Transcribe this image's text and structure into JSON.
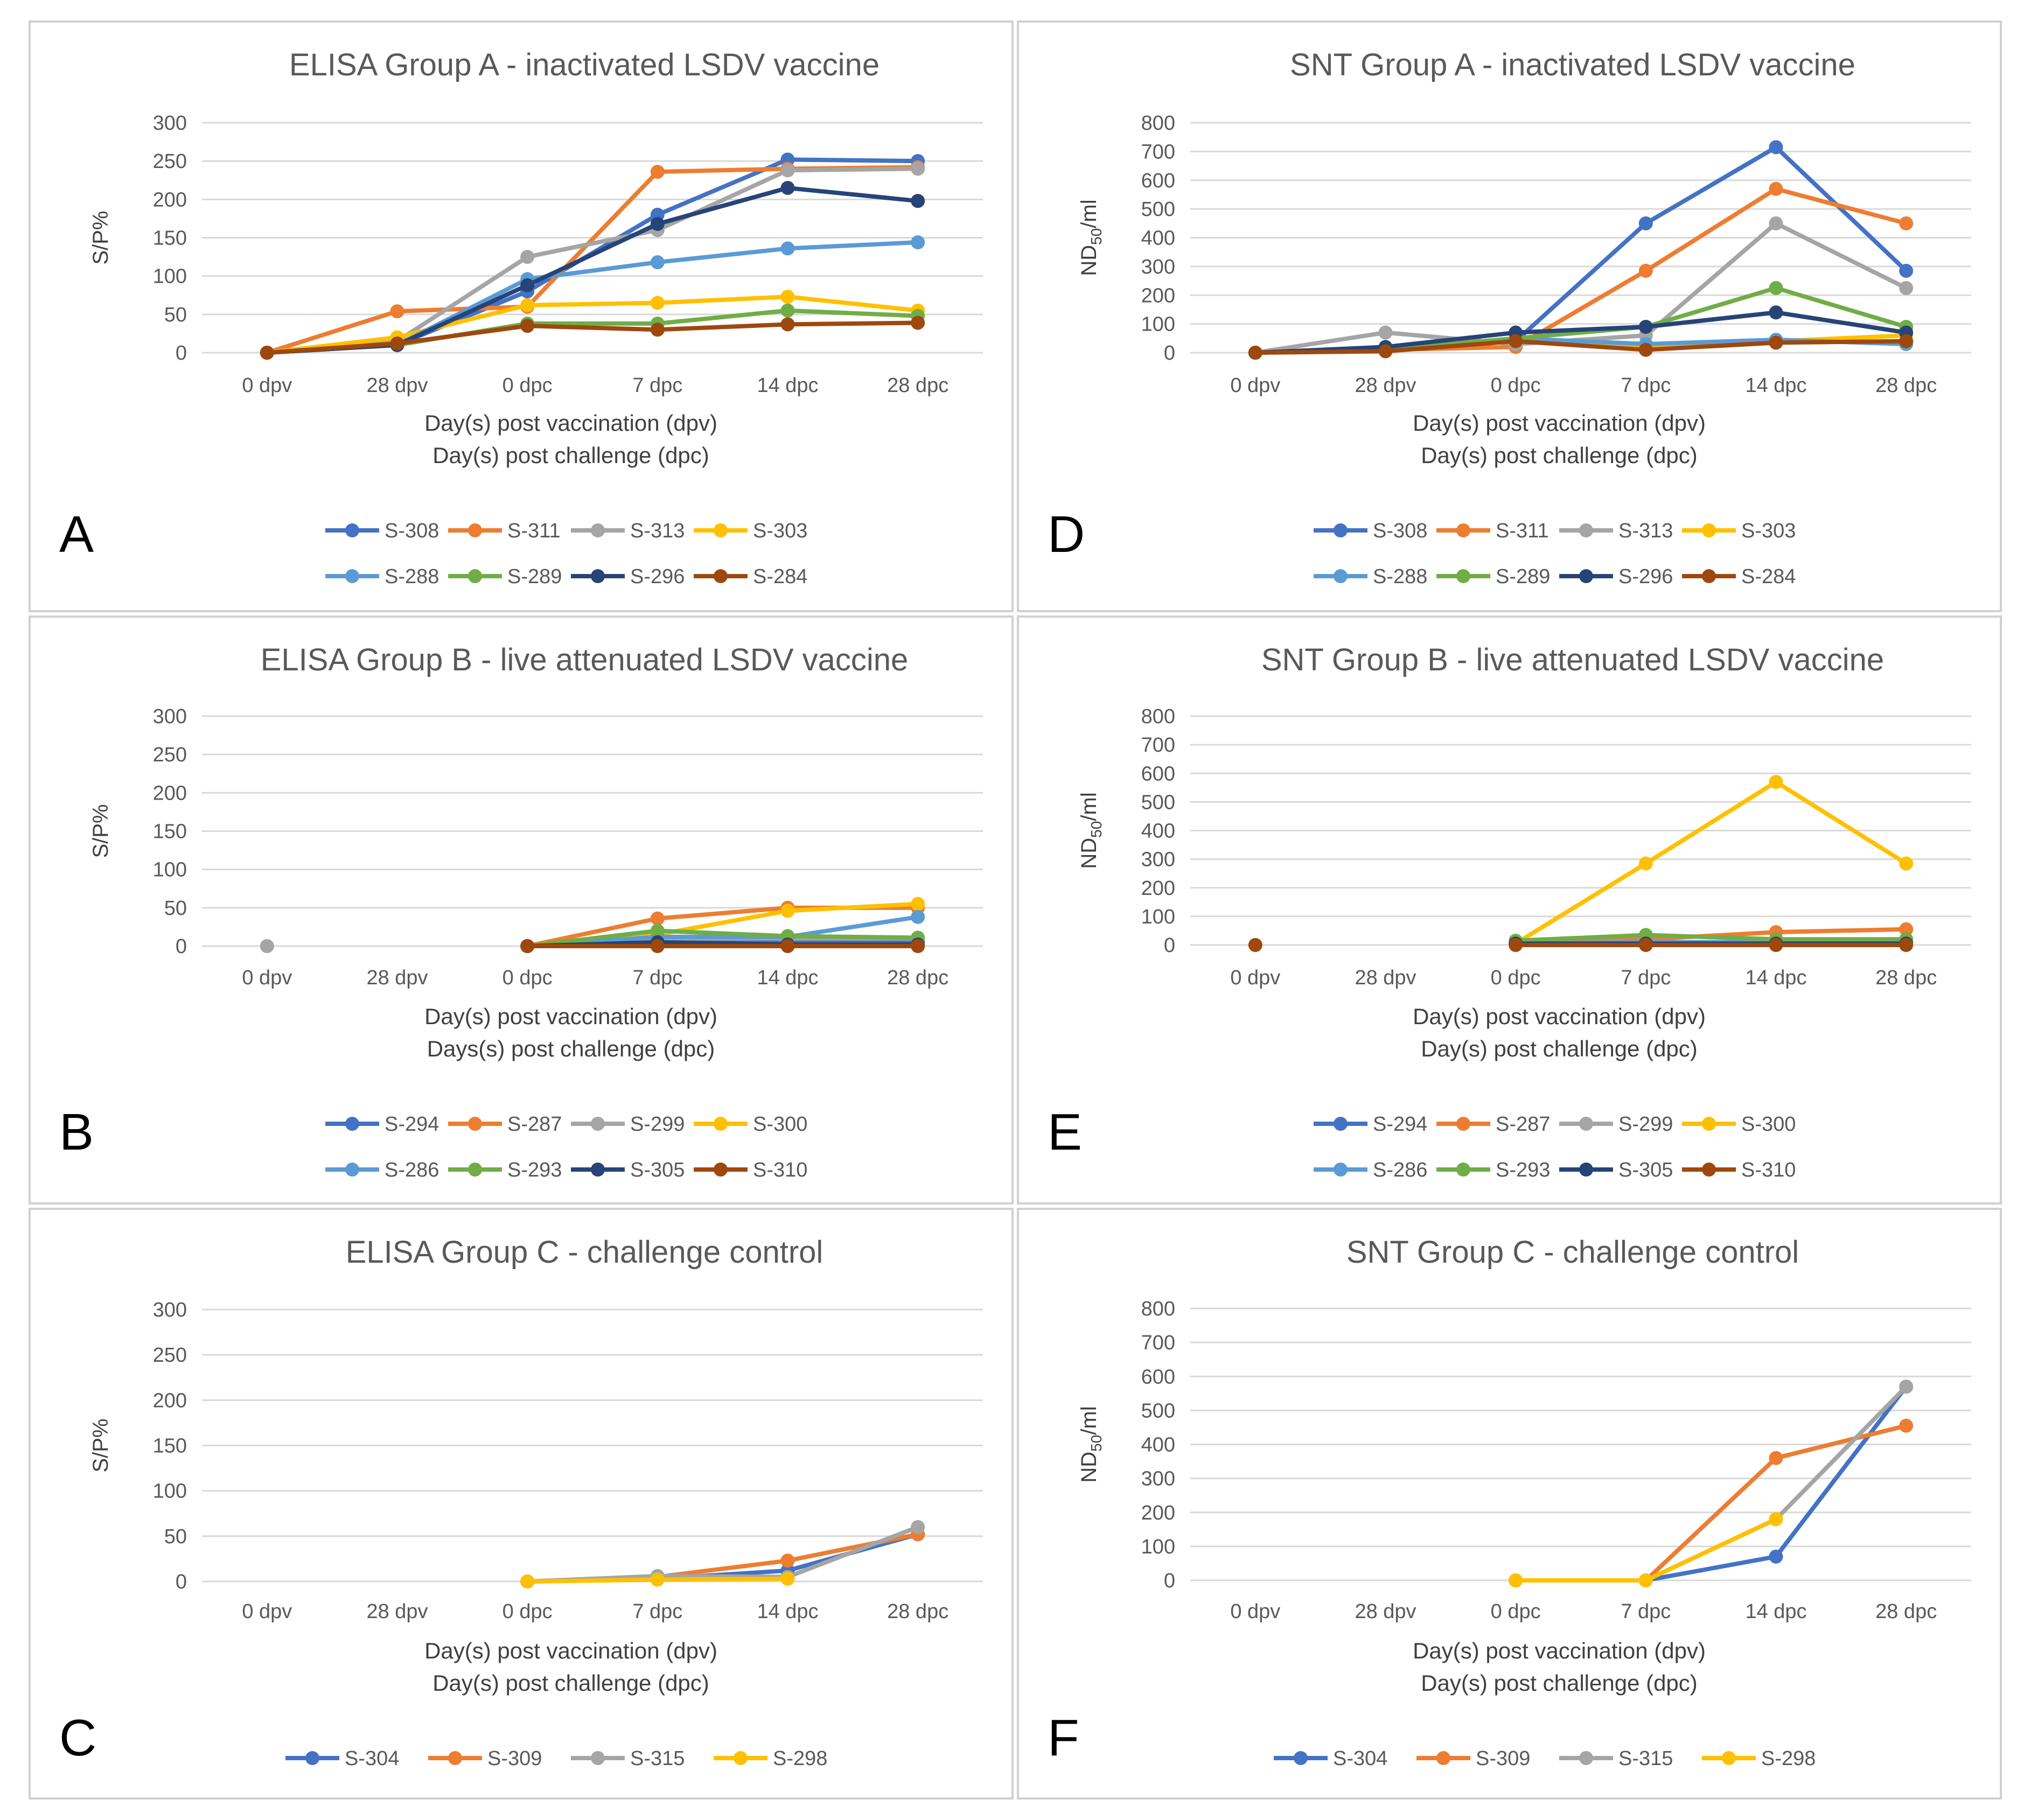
{
  "chart_data": [
    {
      "panel": "A",
      "type": "line",
      "title": "ELISA Group A - inactivated LSDV vaccine",
      "ylabel": "S/P%",
      "xlabel": [
        "Day(s) post vaccination (dpv)",
        "Day(s) post challenge (dpc)"
      ],
      "categories": [
        "0 dpv",
        "28 dpv",
        "0 dpc",
        "7 dpc",
        "14 dpc",
        "28 dpc"
      ],
      "ylim": [
        0,
        300
      ],
      "yticks": [
        "0",
        "50",
        "100",
        "150",
        "200",
        "250",
        "300"
      ],
      "series": [
        {
          "name": "S-308",
          "color": "#4472C4",
          "values": [
            0,
            10,
            80,
            180,
            252,
            250
          ]
        },
        {
          "name": "S-311",
          "color": "#ED7D31",
          "values": [
            0,
            54,
            60,
            236,
            240,
            242
          ]
        },
        {
          "name": "S-313",
          "color": "#A5A5A5",
          "values": [
            0,
            15,
            125,
            160,
            238,
            240
          ]
        },
        {
          "name": "S-303",
          "color": "#FFC000",
          "values": [
            0,
            20,
            62,
            65,
            73,
            55
          ]
        },
        {
          "name": "S-288",
          "color": "#5B9BD5",
          "values": [
            0,
            10,
            96,
            118,
            136,
            144
          ]
        },
        {
          "name": "S-289",
          "color": "#70AD47",
          "values": [
            0,
            10,
            38,
            38,
            55,
            48
          ]
        },
        {
          "name": "S-296",
          "color": "#264478",
          "values": [
            0,
            10,
            88,
            168,
            215,
            198
          ]
        },
        {
          "name": "S-284",
          "color": "#9E480E",
          "values": [
            0,
            12,
            35,
            30,
            37,
            39
          ]
        }
      ]
    },
    {
      "panel": "B",
      "type": "line",
      "title": "ELISA Group B - live attenuated LSDV vaccine",
      "ylabel": "S/P%",
      "xlabel": [
        "Day(s) post vaccination (dpv)",
        "Days(s) post challenge (dpc)"
      ],
      "categories": [
        "0 dpv",
        "28 dpv",
        "0 dpc",
        "7 dpc",
        "14 dpc",
        "28 dpc"
      ],
      "ylim": [
        0,
        300
      ],
      "yticks": [
        "0",
        "50",
        "100",
        "150",
        "200",
        "250",
        "300"
      ],
      "series": [
        {
          "name": "S-294",
          "color": "#4472C4",
          "values": [
            null,
            null,
            0,
            8,
            5,
            5
          ]
        },
        {
          "name": "S-287",
          "color": "#ED7D31",
          "values": [
            null,
            null,
            0,
            36,
            50,
            50
          ]
        },
        {
          "name": "S-299",
          "color": "#A5A5A5",
          "values": [
            0,
            null,
            0,
            10,
            10,
            10
          ]
        },
        {
          "name": "S-300",
          "color": "#FFC000",
          "values": [
            null,
            null,
            0,
            15,
            46,
            55
          ]
        },
        {
          "name": "S-286",
          "color": "#5B9BD5",
          "values": [
            null,
            null,
            0,
            12,
            12,
            38
          ]
        },
        {
          "name": "S-293",
          "color": "#70AD47",
          "values": [
            null,
            null,
            0,
            20,
            13,
            11
          ]
        },
        {
          "name": "S-305",
          "color": "#264478",
          "values": [
            null,
            null,
            0,
            5,
            2,
            2
          ]
        },
        {
          "name": "S-310",
          "color": "#9E480E",
          "values": [
            null,
            null,
            0,
            0,
            0,
            0
          ]
        }
      ]
    },
    {
      "panel": "C",
      "type": "line",
      "title": "ELISA Group C - challenge control",
      "ylabel": "S/P%",
      "xlabel": [
        "Day(s) post vaccination (dpv)",
        "Day(s) post challenge (dpc)"
      ],
      "categories": [
        "0 dpv",
        "28 dpv",
        "0 dpc",
        "7 dpc",
        "14 dpc",
        "28 dpc"
      ],
      "ylim": [
        0,
        300
      ],
      "yticks": [
        "0",
        "50",
        "100",
        "150",
        "200",
        "250",
        "300"
      ],
      "series": [
        {
          "name": "S-304",
          "color": "#4472C4",
          "values": [
            null,
            null,
            0,
            3,
            12,
            52
          ]
        },
        {
          "name": "S-309",
          "color": "#ED7D31",
          "values": [
            null,
            null,
            0,
            5,
            23,
            52
          ]
        },
        {
          "name": "S-315",
          "color": "#A5A5A5",
          "values": [
            null,
            null,
            0,
            6,
            5,
            60
          ]
        },
        {
          "name": "S-298",
          "color": "#FFC000",
          "values": [
            null,
            null,
            0,
            2,
            3,
            null
          ]
        }
      ]
    },
    {
      "panel": "D",
      "type": "line",
      "title": "SNT Group A - inactivated LSDV vaccine",
      "ylabel": "ND50/ml",
      "xlabel": [
        "Day(s) post vaccination (dpv)",
        "Day(s) post challenge (dpc)"
      ],
      "categories": [
        "0 dpv",
        "28 dpv",
        "0 dpc",
        "7 dpc",
        "14 dpc",
        "28 dpc"
      ],
      "ylim": [
        0,
        800
      ],
      "yticks": [
        "0",
        "100",
        "200",
        "300",
        "400",
        "500",
        "600",
        "700",
        "800"
      ],
      "series": [
        {
          "name": "S-308",
          "color": "#4472C4",
          "values": [
            0,
            10,
            40,
            450,
            715,
            285
          ]
        },
        {
          "name": "S-311",
          "color": "#ED7D31",
          "values": [
            0,
            10,
            20,
            285,
            570,
            450
          ]
        },
        {
          "name": "S-313",
          "color": "#A5A5A5",
          "values": [
            0,
            70,
            30,
            60,
            450,
            225
          ]
        },
        {
          "name": "S-303",
          "color": "#FFC000",
          "values": [
            0,
            10,
            40,
            20,
            40,
            60
          ]
        },
        {
          "name": "S-288",
          "color": "#5B9BD5",
          "values": [
            0,
            10,
            50,
            30,
            45,
            30
          ]
        },
        {
          "name": "S-289",
          "color": "#70AD47",
          "values": [
            0,
            10,
            50,
            90,
            225,
            90
          ]
        },
        {
          "name": "S-296",
          "color": "#264478",
          "values": [
            0,
            20,
            70,
            90,
            140,
            70
          ]
        },
        {
          "name": "S-284",
          "color": "#9E480E",
          "values": [
            0,
            5,
            40,
            10,
            35,
            40
          ]
        }
      ]
    },
    {
      "panel": "E",
      "type": "line",
      "title": "SNT Group B - live attenuated LSDV vaccine",
      "ylabel": "ND50/ml",
      "xlabel": [
        "Day(s) post vaccination (dpv)",
        "Day(s) post challenge (dpc)"
      ],
      "categories": [
        "0 dpv",
        "28 dpv",
        "0 dpc",
        "7 dpc",
        "14 dpc",
        "28 dpc"
      ],
      "ylim": [
        0,
        800
      ],
      "yticks": [
        "0",
        "100",
        "200",
        "300",
        "400",
        "500",
        "600",
        "700",
        "800"
      ],
      "series": [
        {
          "name": "S-294",
          "color": "#4472C4",
          "values": [
            null,
            null,
            5,
            10,
            10,
            10
          ]
        },
        {
          "name": "S-287",
          "color": "#ED7D31",
          "values": [
            null,
            null,
            5,
            20,
            45,
            55
          ]
        },
        {
          "name": "S-299",
          "color": "#A5A5A5",
          "values": [
            null,
            null,
            5,
            10,
            10,
            10
          ]
        },
        {
          "name": "S-300",
          "color": "#FFC000",
          "values": [
            null,
            null,
            5,
            285,
            570,
            285
          ]
        },
        {
          "name": "S-286",
          "color": "#5B9BD5",
          "values": [
            null,
            null,
            5,
            10,
            10,
            10
          ]
        },
        {
          "name": "S-293",
          "color": "#70AD47",
          "values": [
            null,
            null,
            15,
            35,
            20,
            20
          ]
        },
        {
          "name": "S-305",
          "color": "#264478",
          "values": [
            null,
            null,
            5,
            5,
            5,
            5
          ]
        },
        {
          "name": "S-310",
          "color": "#9E480E",
          "values": [
            0,
            null,
            0,
            0,
            0,
            0
          ]
        }
      ]
    },
    {
      "panel": "F",
      "type": "line",
      "title": "SNT Group C - challenge control",
      "ylabel": "ND50/ml",
      "xlabel": [
        "Day(s) post vaccination (dpv)",
        "Day(s) post challenge (dpc)"
      ],
      "categories": [
        "0 dpv",
        "28 dpv",
        "0 dpc",
        "7 dpc",
        "14 dpc",
        "28 dpc"
      ],
      "ylim": [
        0,
        800
      ],
      "yticks": [
        "0",
        "100",
        "200",
        "300",
        "400",
        "500",
        "600",
        "700",
        "800"
      ],
      "series": [
        {
          "name": "S-304",
          "color": "#4472C4",
          "values": [
            null,
            null,
            0,
            0,
            70,
            570
          ]
        },
        {
          "name": "S-309",
          "color": "#ED7D31",
          "values": [
            null,
            null,
            0,
            0,
            360,
            455
          ]
        },
        {
          "name": "S-315",
          "color": "#A5A5A5",
          "values": [
            null,
            null,
            0,
            0,
            180,
            570
          ]
        },
        {
          "name": "S-298",
          "color": "#FFC000",
          "values": [
            null,
            null,
            0,
            0,
            180,
            null
          ]
        }
      ]
    }
  ]
}
